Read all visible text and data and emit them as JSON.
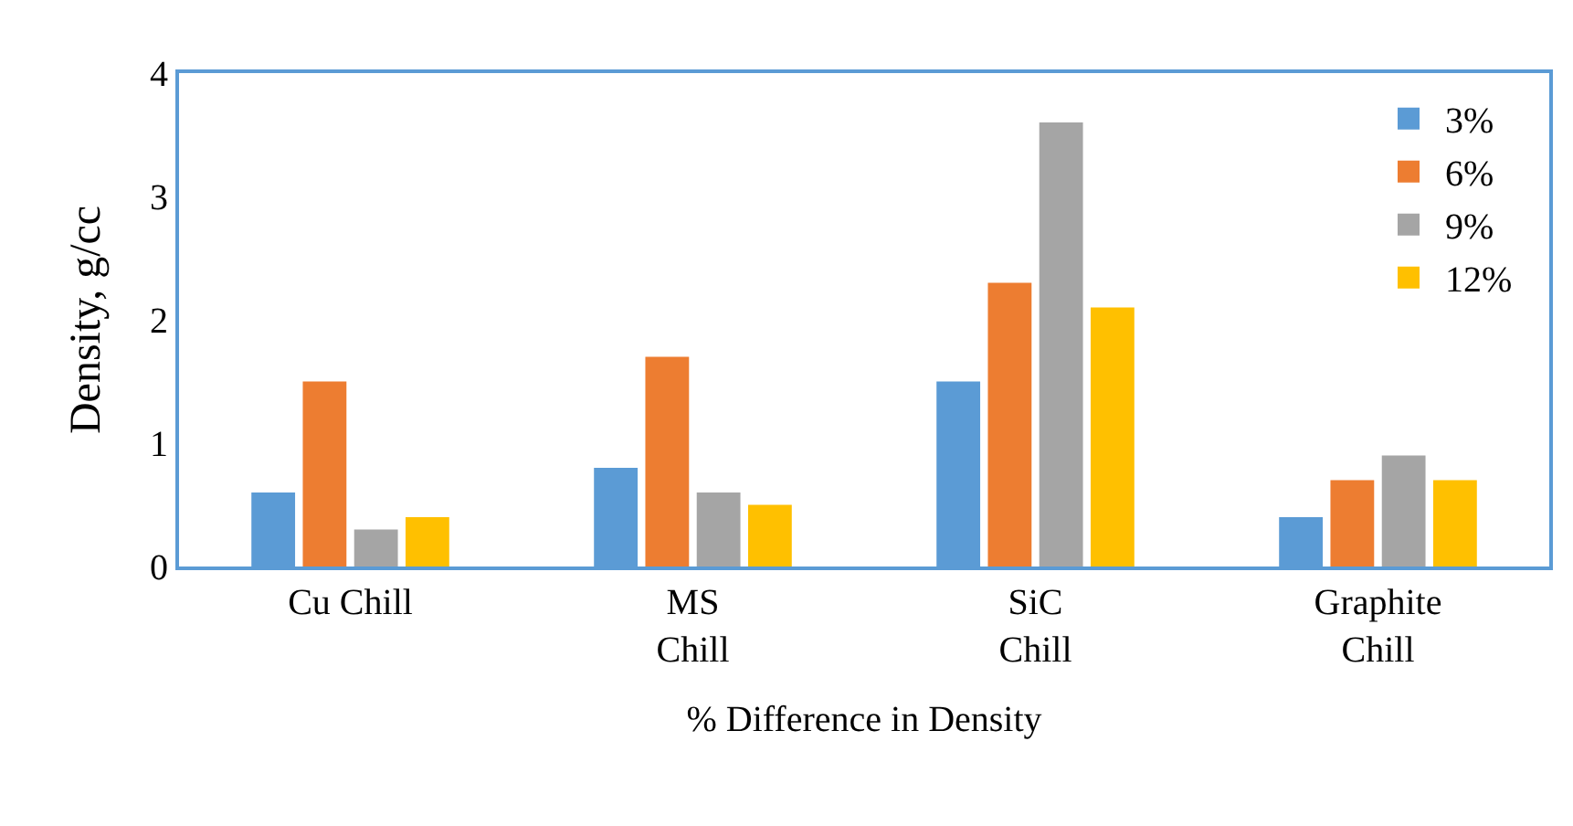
{
  "chart_data": {
    "type": "bar",
    "xlabel": "% Difference in Density",
    "ylabel": "Density, g/cc",
    "categories": [
      "Cu Chill",
      "MS\nChill",
      "SiC\nChill",
      "Graphite\nChill"
    ],
    "series": [
      {
        "name": "3%",
        "color": "#5b9bd5",
        "values": [
          0.6,
          0.8,
          1.5,
          0.4
        ]
      },
      {
        "name": "6%",
        "color": "#ed7d31",
        "values": [
          1.5,
          1.7,
          2.3,
          0.7
        ]
      },
      {
        "name": "9%",
        "color": "#a5a5a5",
        "values": [
          0.3,
          0.6,
          3.6,
          0.9
        ]
      },
      {
        "name": "12%",
        "color": "#ffc000",
        "values": [
          0.4,
          0.5,
          2.1,
          0.7
        ]
      }
    ],
    "ylim": [
      0,
      4
    ],
    "yticks": [
      0,
      1,
      2,
      3,
      4
    ],
    "grid": false,
    "legend": "top right"
  }
}
